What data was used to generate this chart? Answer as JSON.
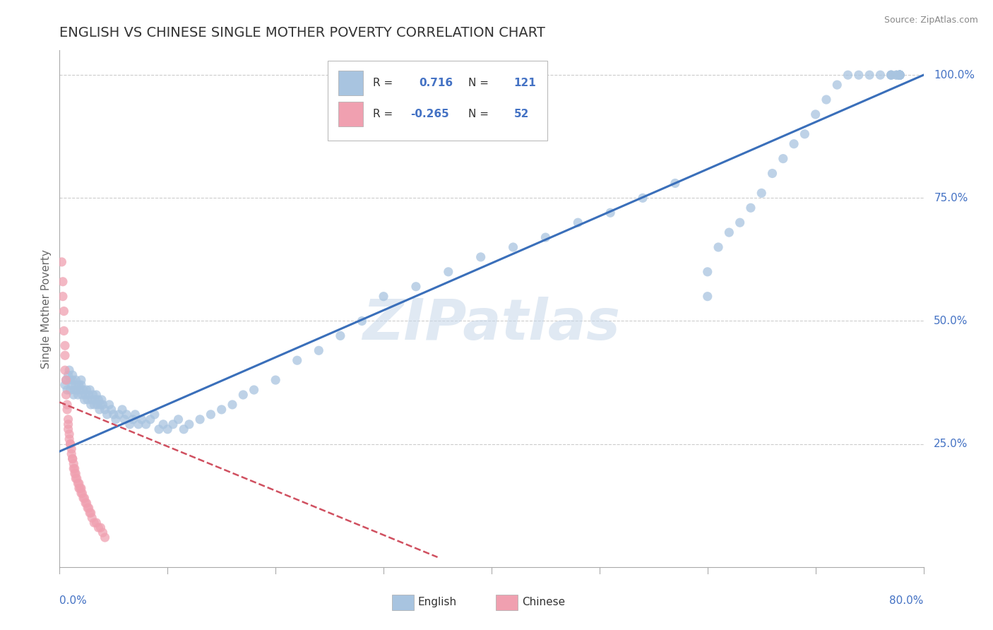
{
  "title": "ENGLISH VS CHINESE SINGLE MOTHER POVERTY CORRELATION CHART",
  "source": "Source: ZipAtlas.com",
  "ylabel": "Single Mother Poverty",
  "r_english": "0.716",
  "n_english": "121",
  "r_chinese": "-0.265",
  "n_chinese": "52",
  "watermark": "ZIPatlas",
  "bg_color": "#ffffff",
  "english_color": "#a8c4e0",
  "english_line_color": "#3a6fba",
  "chinese_color": "#f0a0b0",
  "chinese_line_color": "#d05060",
  "grid_color": "#cccccc",
  "tick_color": "#4472c4",
  "text_color": "#333333",
  "source_color": "#888888",
  "ylabel_color": "#666666",
  "xlim": [
    0.0,
    0.8
  ],
  "ylim": [
    0.0,
    1.05
  ],
  "ytick_vals": [
    0.25,
    0.5,
    0.75,
    1.0
  ],
  "ytick_labels": [
    "25.0%",
    "50.0%",
    "75.0%",
    "100.0%"
  ],
  "eng_x": [
    0.005,
    0.006,
    0.007,
    0.008,
    0.009,
    0.01,
    0.01,
    0.011,
    0.012,
    0.012,
    0.013,
    0.014,
    0.015,
    0.015,
    0.016,
    0.017,
    0.018,
    0.019,
    0.02,
    0.02,
    0.021,
    0.022,
    0.023,
    0.024,
    0.025,
    0.026,
    0.027,
    0.028,
    0.029,
    0.03,
    0.031,
    0.032,
    0.033,
    0.034,
    0.035,
    0.036,
    0.037,
    0.038,
    0.039,
    0.04,
    0.042,
    0.044,
    0.046,
    0.048,
    0.05,
    0.052,
    0.055,
    0.058,
    0.06,
    0.062,
    0.065,
    0.068,
    0.07,
    0.073,
    0.076,
    0.08,
    0.084,
    0.088,
    0.092,
    0.096,
    0.1,
    0.105,
    0.11,
    0.115,
    0.12,
    0.13,
    0.14,
    0.15,
    0.16,
    0.17,
    0.18,
    0.2,
    0.22,
    0.24,
    0.26,
    0.28,
    0.3,
    0.33,
    0.36,
    0.39,
    0.42,
    0.45,
    0.48,
    0.51,
    0.54,
    0.57,
    0.6,
    0.6,
    0.61,
    0.62,
    0.63,
    0.64,
    0.65,
    0.66,
    0.67,
    0.68,
    0.69,
    0.7,
    0.71,
    0.72,
    0.73,
    0.74,
    0.75,
    0.76,
    0.77,
    0.77,
    0.77,
    0.775,
    0.775,
    0.778,
    0.778,
    0.778,
    0.778,
    0.778,
    0.778,
    0.778,
    0.778,
    0.778,
    0.778,
    0.778,
    0.778
  ],
  "eng_y": [
    0.37,
    0.38,
    0.36,
    0.39,
    0.4,
    0.38,
    0.36,
    0.37,
    0.38,
    0.39,
    0.35,
    0.36,
    0.37,
    0.38,
    0.36,
    0.35,
    0.37,
    0.36,
    0.37,
    0.38,
    0.35,
    0.36,
    0.34,
    0.35,
    0.36,
    0.34,
    0.35,
    0.36,
    0.33,
    0.34,
    0.35,
    0.33,
    0.34,
    0.35,
    0.33,
    0.34,
    0.32,
    0.33,
    0.34,
    0.33,
    0.32,
    0.31,
    0.33,
    0.32,
    0.31,
    0.3,
    0.31,
    0.32,
    0.3,
    0.31,
    0.29,
    0.3,
    0.31,
    0.29,
    0.3,
    0.29,
    0.3,
    0.31,
    0.28,
    0.29,
    0.28,
    0.29,
    0.3,
    0.28,
    0.29,
    0.3,
    0.31,
    0.32,
    0.33,
    0.35,
    0.36,
    0.38,
    0.42,
    0.44,
    0.47,
    0.5,
    0.55,
    0.57,
    0.6,
    0.63,
    0.65,
    0.67,
    0.7,
    0.72,
    0.75,
    0.78,
    0.55,
    0.6,
    0.65,
    0.68,
    0.7,
    0.73,
    0.76,
    0.8,
    0.83,
    0.86,
    0.88,
    0.92,
    0.95,
    0.98,
    1.0,
    1.0,
    1.0,
    1.0,
    1.0,
    1.0,
    1.0,
    1.0,
    1.0,
    1.0,
    1.0,
    1.0,
    1.0,
    1.0,
    1.0,
    1.0,
    1.0,
    1.0,
    1.0,
    1.0,
    1.0
  ],
  "chi_x": [
    0.002,
    0.003,
    0.003,
    0.004,
    0.004,
    0.005,
    0.005,
    0.005,
    0.006,
    0.006,
    0.007,
    0.007,
    0.008,
    0.008,
    0.008,
    0.009,
    0.009,
    0.01,
    0.01,
    0.011,
    0.011,
    0.012,
    0.012,
    0.013,
    0.013,
    0.014,
    0.014,
    0.015,
    0.015,
    0.016,
    0.017,
    0.018,
    0.018,
    0.019,
    0.02,
    0.02,
    0.021,
    0.022,
    0.023,
    0.024,
    0.025,
    0.026,
    0.027,
    0.028,
    0.029,
    0.03,
    0.032,
    0.034,
    0.036,
    0.038,
    0.04,
    0.042
  ],
  "chi_y": [
    0.62,
    0.58,
    0.55,
    0.52,
    0.48,
    0.45,
    0.43,
    0.4,
    0.38,
    0.35,
    0.33,
    0.32,
    0.3,
    0.29,
    0.28,
    0.27,
    0.26,
    0.25,
    0.25,
    0.24,
    0.23,
    0.22,
    0.22,
    0.21,
    0.2,
    0.2,
    0.19,
    0.19,
    0.18,
    0.18,
    0.17,
    0.17,
    0.16,
    0.16,
    0.16,
    0.15,
    0.15,
    0.14,
    0.14,
    0.13,
    0.13,
    0.12,
    0.12,
    0.11,
    0.11,
    0.1,
    0.09,
    0.09,
    0.08,
    0.08,
    0.07,
    0.06
  ],
  "eng_line_x": [
    0.0,
    0.8
  ],
  "eng_line_y": [
    0.235,
    1.0
  ],
  "chi_line_x": [
    0.0,
    0.35
  ],
  "chi_line_y": [
    0.335,
    0.02
  ]
}
